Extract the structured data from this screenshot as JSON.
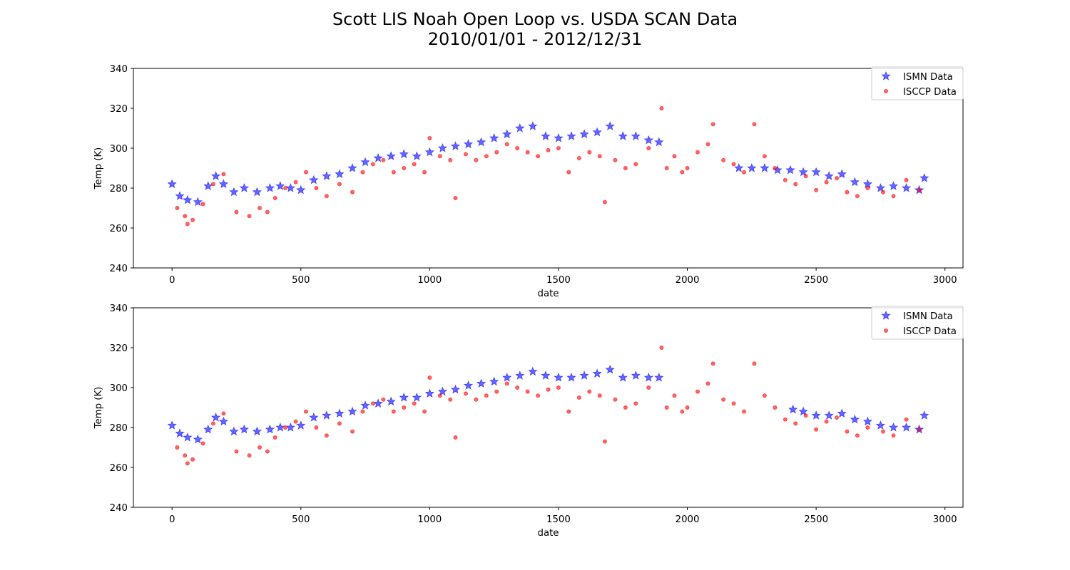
{
  "figure": {
    "title_line1": "Scott LIS Noah Open Loop vs. USDA SCAN Data",
    "title_line2": "2010/01/01 - 2012/12/31"
  },
  "colors": {
    "ismn": "#0000ff",
    "isccp": "#ff0000",
    "axis": "#000000"
  },
  "chart_data": [
    {
      "type": "scatter",
      "panel": "top",
      "xlabel": "date",
      "ylabel": "Temp (K)",
      "xlim": [
        -150,
        3070
      ],
      "ylim": [
        240,
        340
      ],
      "xticks": [
        0,
        500,
        1000,
        1500,
        2000,
        2500,
        3000
      ],
      "yticks": [
        240,
        260,
        280,
        300,
        320,
        340
      ],
      "legend": {
        "placement": "top-right",
        "entries": [
          "ISMN Data",
          "ISCCP Data"
        ]
      },
      "series": [
        {
          "name": "ISMN Data",
          "marker": "star",
          "color": "#0000ff",
          "points": [
            [
              0,
              282
            ],
            [
              30,
              276
            ],
            [
              60,
              274
            ],
            [
              100,
              273
            ],
            [
              140,
              281
            ],
            [
              170,
              286
            ],
            [
              200,
              282
            ],
            [
              240,
              278
            ],
            [
              280,
              280
            ],
            [
              330,
              278
            ],
            [
              380,
              280
            ],
            [
              420,
              281
            ],
            [
              460,
              280
            ],
            [
              500,
              279
            ],
            [
              550,
              284
            ],
            [
              600,
              286
            ],
            [
              650,
              287
            ],
            [
              700,
              290
            ],
            [
              750,
              293
            ],
            [
              800,
              295
            ],
            [
              850,
              296
            ],
            [
              900,
              297
            ],
            [
              950,
              296
            ],
            [
              1000,
              298
            ],
            [
              1050,
              300
            ],
            [
              1100,
              301
            ],
            [
              1150,
              302
            ],
            [
              1200,
              303
            ],
            [
              1250,
              305
            ],
            [
              1300,
              307
            ],
            [
              1350,
              310
            ],
            [
              1400,
              311
            ],
            [
              1450,
              306
            ],
            [
              1500,
              305
            ],
            [
              1550,
              306
            ],
            [
              1600,
              307
            ],
            [
              1650,
              308
            ],
            [
              1700,
              311
            ],
            [
              1750,
              306
            ],
            [
              1800,
              306
            ],
            [
              1850,
              304
            ],
            [
              1890,
              303
            ],
            [
              2200,
              290
            ],
            [
              2250,
              290
            ],
            [
              2300,
              290
            ],
            [
              2350,
              289
            ],
            [
              2400,
              289
            ],
            [
              2450,
              288
            ],
            [
              2500,
              288
            ],
            [
              2550,
              286
            ],
            [
              2600,
              287
            ],
            [
              2650,
              283
            ],
            [
              2700,
              282
            ],
            [
              2750,
              280
            ],
            [
              2800,
              281
            ],
            [
              2850,
              280
            ],
            [
              2900,
              279
            ],
            [
              2920,
              285
            ]
          ]
        },
        {
          "name": "ISCCP Data",
          "marker": "circle",
          "color": "#ff0000",
          "points": [
            [
              20,
              270
            ],
            [
              50,
              266
            ],
            [
              60,
              262
            ],
            [
              80,
              264
            ],
            [
              120,
              272
            ],
            [
              160,
              282
            ],
            [
              200,
              287
            ],
            [
              250,
              268
            ],
            [
              300,
              266
            ],
            [
              340,
              270
            ],
            [
              370,
              268
            ],
            [
              400,
              275
            ],
            [
              440,
              280
            ],
            [
              480,
              283
            ],
            [
              520,
              288
            ],
            [
              560,
              280
            ],
            [
              600,
              276
            ],
            [
              650,
              282
            ],
            [
              700,
              278
            ],
            [
              740,
              288
            ],
            [
              780,
              292
            ],
            [
              820,
              294
            ],
            [
              860,
              288
            ],
            [
              900,
              290
            ],
            [
              940,
              292
            ],
            [
              980,
              288
            ],
            [
              1000,
              305
            ],
            [
              1040,
              296
            ],
            [
              1080,
              294
            ],
            [
              1100,
              275
            ],
            [
              1140,
              297
            ],
            [
              1180,
              294
            ],
            [
              1220,
              296
            ],
            [
              1260,
              298
            ],
            [
              1300,
              302
            ],
            [
              1340,
              300
            ],
            [
              1380,
              298
            ],
            [
              1420,
              296
            ],
            [
              1460,
              299
            ],
            [
              1500,
              300
            ],
            [
              1540,
              288
            ],
            [
              1580,
              295
            ],
            [
              1620,
              298
            ],
            [
              1660,
              296
            ],
            [
              1680,
              273
            ],
            [
              1720,
              294
            ],
            [
              1760,
              290
            ],
            [
              1800,
              292
            ],
            [
              1850,
              300
            ],
            [
              1900,
              320
            ],
            [
              1920,
              290
            ],
            [
              1950,
              296
            ],
            [
              1980,
              288
            ],
            [
              2000,
              290
            ],
            [
              2040,
              298
            ],
            [
              2080,
              302
            ],
            [
              2100,
              312
            ],
            [
              2140,
              294
            ],
            [
              2180,
              292
            ],
            [
              2220,
              288
            ],
            [
              2260,
              312
            ],
            [
              2300,
              296
            ],
            [
              2340,
              290
            ],
            [
              2380,
              284
            ],
            [
              2420,
              282
            ],
            [
              2460,
              286
            ],
            [
              2500,
              279
            ],
            [
              2540,
              283
            ],
            [
              2580,
              285
            ],
            [
              2620,
              278
            ],
            [
              2660,
              276
            ],
            [
              2700,
              280
            ],
            [
              2760,
              278
            ],
            [
              2800,
              276
            ],
            [
              2850,
              284
            ],
            [
              2900,
              279
            ]
          ]
        }
      ]
    },
    {
      "type": "scatter",
      "panel": "bottom",
      "xlabel": "date",
      "ylabel": "Temp (K)",
      "xlim": [
        -150,
        3070
      ],
      "ylim": [
        240,
        340
      ],
      "xticks": [
        0,
        500,
        1000,
        1500,
        2000,
        2500,
        3000
      ],
      "yticks": [
        240,
        260,
        280,
        300,
        320,
        340
      ],
      "legend": {
        "placement": "top-right",
        "entries": [
          "ISMN Data",
          "ISCCP Data"
        ]
      },
      "series": [
        {
          "name": "ISMN Data",
          "marker": "star",
          "color": "#0000ff",
          "points": [
            [
              0,
              281
            ],
            [
              30,
              277
            ],
            [
              60,
              275
            ],
            [
              100,
              274
            ],
            [
              140,
              279
            ],
            [
              170,
              285
            ],
            [
              200,
              283
            ],
            [
              240,
              278
            ],
            [
              280,
              279
            ],
            [
              330,
              278
            ],
            [
              380,
              279
            ],
            [
              420,
              280
            ],
            [
              460,
              280
            ],
            [
              500,
              281
            ],
            [
              550,
              285
            ],
            [
              600,
              286
            ],
            [
              650,
              287
            ],
            [
              700,
              288
            ],
            [
              750,
              291
            ],
            [
              800,
              292
            ],
            [
              850,
              293
            ],
            [
              900,
              295
            ],
            [
              950,
              295
            ],
            [
              1000,
              297
            ],
            [
              1050,
              298
            ],
            [
              1100,
              299
            ],
            [
              1150,
              301
            ],
            [
              1200,
              302
            ],
            [
              1250,
              303
            ],
            [
              1300,
              305
            ],
            [
              1350,
              306
            ],
            [
              1400,
              308
            ],
            [
              1450,
              306
            ],
            [
              1500,
              305
            ],
            [
              1550,
              305
            ],
            [
              1600,
              306
            ],
            [
              1650,
              307
            ],
            [
              1700,
              309
            ],
            [
              1750,
              305
            ],
            [
              1800,
              306
            ],
            [
              1850,
              305
            ],
            [
              1890,
              305
            ],
            [
              2410,
              289
            ],
            [
              2450,
              288
            ],
            [
              2500,
              286
            ],
            [
              2550,
              286
            ],
            [
              2600,
              287
            ],
            [
              2650,
              284
            ],
            [
              2700,
              283
            ],
            [
              2750,
              281
            ],
            [
              2800,
              280
            ],
            [
              2850,
              280
            ],
            [
              2900,
              279
            ],
            [
              2920,
              286
            ]
          ]
        },
        {
          "name": "ISCCP Data",
          "marker": "circle",
          "color": "#ff0000",
          "points": [
            [
              20,
              270
            ],
            [
              50,
              266
            ],
            [
              60,
              262
            ],
            [
              80,
              264
            ],
            [
              120,
              272
            ],
            [
              160,
              282
            ],
            [
              200,
              287
            ],
            [
              250,
              268
            ],
            [
              300,
              266
            ],
            [
              340,
              270
            ],
            [
              370,
              268
            ],
            [
              400,
              275
            ],
            [
              440,
              280
            ],
            [
              480,
              283
            ],
            [
              520,
              288
            ],
            [
              560,
              280
            ],
            [
              600,
              276
            ],
            [
              650,
              282
            ],
            [
              700,
              278
            ],
            [
              740,
              288
            ],
            [
              780,
              292
            ],
            [
              820,
              294
            ],
            [
              860,
              288
            ],
            [
              900,
              290
            ],
            [
              940,
              292
            ],
            [
              980,
              288
            ],
            [
              1000,
              305
            ],
            [
              1040,
              296
            ],
            [
              1080,
              294
            ],
            [
              1100,
              275
            ],
            [
              1140,
              297
            ],
            [
              1180,
              294
            ],
            [
              1220,
              296
            ],
            [
              1260,
              298
            ],
            [
              1300,
              302
            ],
            [
              1340,
              300
            ],
            [
              1380,
              298
            ],
            [
              1420,
              296
            ],
            [
              1460,
              299
            ],
            [
              1500,
              300
            ],
            [
              1540,
              288
            ],
            [
              1580,
              295
            ],
            [
              1620,
              298
            ],
            [
              1660,
              296
            ],
            [
              1680,
              273
            ],
            [
              1720,
              294
            ],
            [
              1760,
              290
            ],
            [
              1800,
              292
            ],
            [
              1850,
              300
            ],
            [
              1900,
              320
            ],
            [
              1920,
              290
            ],
            [
              1950,
              296
            ],
            [
              1980,
              288
            ],
            [
              2000,
              290
            ],
            [
              2040,
              298
            ],
            [
              2080,
              302
            ],
            [
              2100,
              312
            ],
            [
              2140,
              294
            ],
            [
              2180,
              292
            ],
            [
              2220,
              288
            ],
            [
              2260,
              312
            ],
            [
              2300,
              296
            ],
            [
              2340,
              290
            ],
            [
              2380,
              284
            ],
            [
              2420,
              282
            ],
            [
              2460,
              286
            ],
            [
              2500,
              279
            ],
            [
              2540,
              283
            ],
            [
              2580,
              285
            ],
            [
              2620,
              278
            ],
            [
              2660,
              276
            ],
            [
              2700,
              280
            ],
            [
              2760,
              278
            ],
            [
              2800,
              276
            ],
            [
              2850,
              284
            ],
            [
              2900,
              279
            ]
          ]
        }
      ]
    }
  ]
}
